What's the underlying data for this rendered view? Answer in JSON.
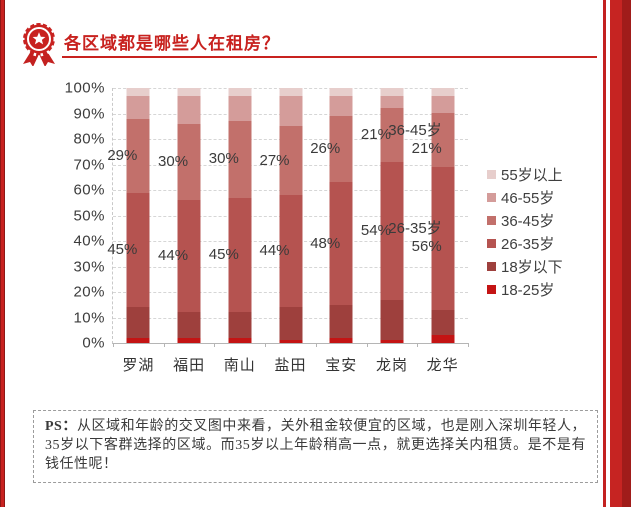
{
  "page": {
    "title": "各区域都是哪些人在租房？",
    "accent_color": "#c8221f"
  },
  "chart_data": {
    "type": "bar",
    "variant": "100%-stacked-column",
    "categories": [
      "罗湖",
      "福田",
      "南山",
      "盐田",
      "宝安",
      "龙岗",
      "龙华"
    ],
    "series": [
      {
        "name": "18-25岁",
        "color": "#c41414",
        "values": [
          2,
          2,
          2,
          1,
          2,
          1,
          3
        ]
      },
      {
        "name": "18岁以下",
        "color": "#9e403d",
        "values": [
          12,
          10,
          10,
          13,
          13,
          16,
          10
        ]
      },
      {
        "name": "26-35岁",
        "color": "#b55350",
        "values": [
          45,
          44,
          45,
          44,
          48,
          54,
          56
        ]
      },
      {
        "name": "36-45岁",
        "color": "#c2706b",
        "values": [
          29,
          30,
          30,
          27,
          26,
          21,
          21
        ]
      },
      {
        "name": "46-55岁",
        "color": "#d49c9a",
        "values": [
          9,
          11,
          10,
          12,
          8,
          5,
          7
        ]
      },
      {
        "name": "55岁以上",
        "color": "#e7cecc",
        "values": [
          3,
          3,
          3,
          3,
          3,
          3,
          3
        ]
      }
    ],
    "legend": [
      "55岁以上",
      "46-55岁",
      "36-45岁",
      "26-35岁",
      "18岁以下",
      "18-25岁"
    ],
    "legend_position": "right",
    "y_axis": {
      "min": 0,
      "max": 100,
      "step": 10,
      "format": "percent",
      "ticks": [
        "100%",
        "90%",
        "80%",
        "70%",
        "60%",
        "50%",
        "40%",
        "30%",
        "20%",
        "10%",
        "0%"
      ]
    },
    "grid": "horizontal-dashed",
    "data_labels": [
      {
        "series": "36-45岁",
        "labels": [
          "29%",
          "30%",
          "30%",
          "27%",
          "26%",
          "21%",
          "36-45岁\n21%"
        ]
      },
      {
        "series": "26-35岁",
        "labels": [
          "45%",
          "44%",
          "45%",
          "44%",
          "48%",
          "54%",
          "26-35岁\n56%"
        ]
      }
    ]
  },
  "note": {
    "prefix": "PS：",
    "text": "从区域和年龄的交叉图中来看，关外租金较便宜的区域，也是刚入深圳年轻人，35岁以下客群选择的区域。而35岁以上年龄稍高一点，就更选择关内租赁。是不是有钱任性呢！"
  }
}
